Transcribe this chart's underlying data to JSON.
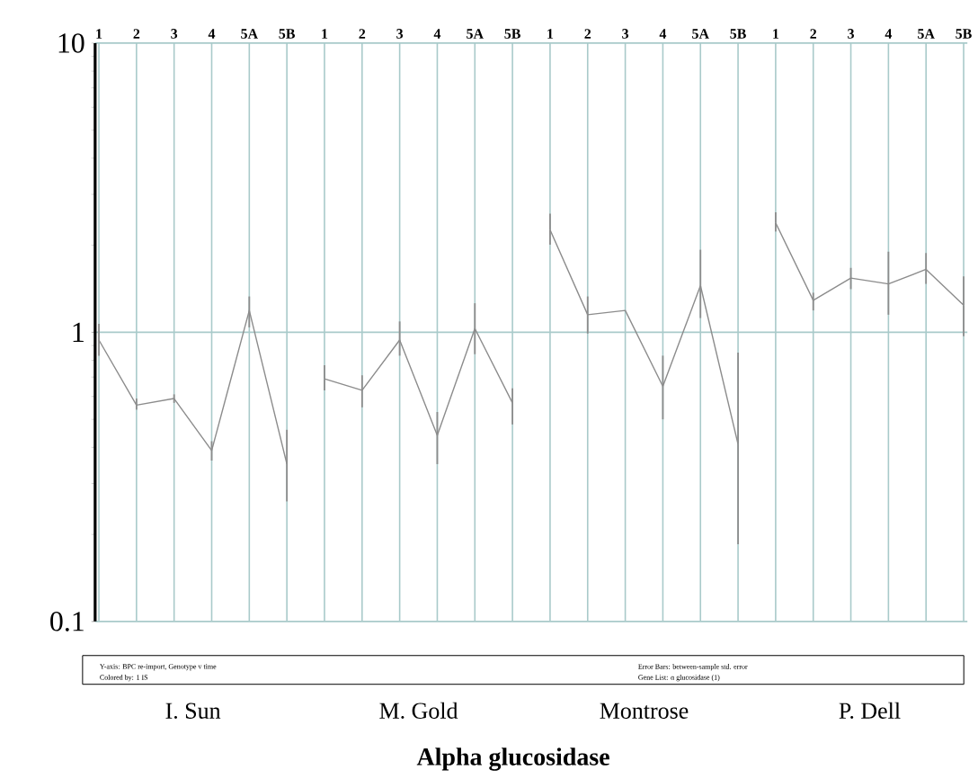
{
  "chart_data": {
    "type": "line",
    "title": "Alpha glucosidase",
    "categories": [
      "1",
      "2",
      "3",
      "4",
      "5A",
      "5B",
      "1",
      "2",
      "3",
      "4",
      "5A",
      "5B",
      "1",
      "2",
      "3",
      "4",
      "5A",
      "5B",
      "1",
      "2",
      "3",
      "4",
      "5A",
      "5B"
    ],
    "series": [
      {
        "color": "#8c8c8c",
        "values": [
          0.94,
          0.56,
          0.59,
          0.39,
          1.19,
          0.35,
          null,
          null,
          null,
          null,
          null,
          null,
          null,
          null,
          null,
          null,
          null,
          null,
          null,
          null,
          null,
          null,
          null,
          null
        ],
        "errors": [
          [
            0.83,
            1.07
          ],
          [
            0.54,
            0.59
          ],
          [
            0.57,
            0.61
          ],
          [
            0.36,
            0.42
          ],
          [
            1.04,
            1.33
          ],
          [
            0.26,
            0.46
          ],
          null,
          null,
          null,
          null,
          null,
          null,
          null,
          null,
          null,
          null,
          null,
          null,
          null,
          null,
          null,
          null,
          null,
          null
        ]
      },
      {
        "color": "#8c8c8c",
        "values": [
          null,
          null,
          null,
          null,
          null,
          null,
          0.69,
          0.63,
          0.94,
          0.44,
          1.03,
          0.57,
          null,
          null,
          null,
          null,
          null,
          null,
          null,
          null,
          null,
          null,
          null,
          null
        ],
        "errors": [
          null,
          null,
          null,
          null,
          null,
          null,
          [
            0.63,
            0.77
          ],
          [
            0.55,
            0.71
          ],
          [
            0.83,
            1.09
          ],
          [
            0.35,
            0.53
          ],
          [
            0.84,
            1.26
          ],
          [
            0.48,
            0.64
          ],
          null,
          null,
          null,
          null,
          null,
          null,
          null,
          null,
          null,
          null,
          null,
          null
        ]
      },
      {
        "color": "#8c8c8c",
        "values": [
          null,
          null,
          null,
          null,
          null,
          null,
          null,
          null,
          null,
          null,
          null,
          null,
          2.26,
          1.15,
          1.19,
          0.65,
          1.45,
          0.41,
          null,
          null,
          null,
          null,
          null,
          null
        ],
        "errors": [
          null,
          null,
          null,
          null,
          null,
          null,
          null,
          null,
          null,
          null,
          null,
          null,
          [
            2.01,
            2.57
          ],
          [
            0.99,
            1.33
          ],
          null,
          [
            0.5,
            0.83
          ],
          [
            1.12,
            1.93
          ],
          [
            0.185,
            0.85
          ],
          null,
          null,
          null,
          null,
          null,
          null
        ]
      },
      {
        "color": "#8c8c8c",
        "values": [
          null,
          null,
          null,
          null,
          null,
          null,
          null,
          null,
          null,
          null,
          null,
          null,
          null,
          null,
          null,
          null,
          null,
          null,
          2.39,
          1.29,
          1.54,
          1.47,
          1.65,
          1.24
        ],
        "errors": [
          null,
          null,
          null,
          null,
          null,
          null,
          null,
          null,
          null,
          null,
          null,
          null,
          null,
          null,
          null,
          null,
          null,
          null,
          [
            2.23,
            2.6
          ],
          [
            1.19,
            1.37
          ],
          [
            1.41,
            1.67
          ],
          [
            1.15,
            1.9
          ],
          [
            1.47,
            1.88
          ],
          [
            0.97,
            1.56
          ]
        ]
      }
    ],
    "log": "y",
    "ylim": [
      0.1,
      10
    ],
    "yticks": [
      0.1,
      1,
      10
    ],
    "grid": true,
    "marker": "none",
    "line_style": "solid",
    "annotations": [
      "I. Sun",
      "M. Gold",
      "Montrose",
      "P. Dell",
      "Y-axis: BPC re-import, Genotype v time",
      "Colored by: 1 IS",
      "Error Bars: between-sample std. error",
      "Gene List: α glucosidase (1)"
    ]
  }
}
